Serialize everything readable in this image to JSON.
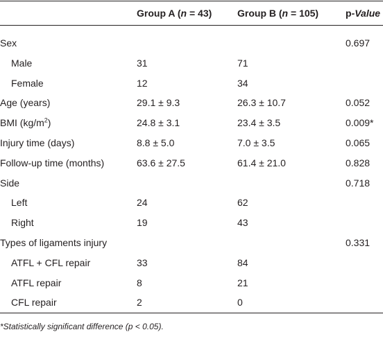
{
  "table": {
    "headers": [
      [
        "Group A (",
        "n",
        " = 43)"
      ],
      [
        "Group B (",
        "n",
        " = 105)"
      ],
      [
        "p",
        "-Value"
      ]
    ],
    "rows": [
      {
        "label": "Sex",
        "p": "0.697"
      },
      {
        "label": "Male",
        "indent": true,
        "a": "31",
        "b": "71"
      },
      {
        "label": "Female",
        "indent": true,
        "a": "12",
        "b": "34"
      },
      {
        "label": "Age (years)",
        "a": "29.1 ± 9.3",
        "b": "26.3 ± 10.7",
        "p": "0.052"
      },
      {
        "label": [
          "BMI (kg/m",
          "2",
          ")"
        ],
        "a": "24.8 ± 3.1",
        "b": "23.4 ± 3.5",
        "p": "0.009*"
      },
      {
        "label": "Injury time (days)",
        "a": "8.8 ± 5.0",
        "b": "7.0 ± 3.5",
        "p": "0.065"
      },
      {
        "label": "Follow-up time (months)",
        "a": "63.6 ± 27.5",
        "b": "61.4 ± 21.0",
        "p": "0.828"
      },
      {
        "label": "Side",
        "p": "0.718"
      },
      {
        "label": "Left",
        "indent": true,
        "a": "24",
        "b": "62"
      },
      {
        "label": "Right",
        "indent": true,
        "a": "19",
        "b": "43"
      },
      {
        "label": "Types of ligaments injury",
        "p": "0.331"
      },
      {
        "label": "ATFL + CFL repair",
        "indent": true,
        "a": "33",
        "b": "84"
      },
      {
        "label": "ATFL repair",
        "indent": true,
        "a": "8",
        "b": "21"
      },
      {
        "label": "CFL repair",
        "indent": true,
        "a": "2",
        "b": "0"
      }
    ],
    "footnote": "*Statistically significant difference (p < 0.05)."
  }
}
